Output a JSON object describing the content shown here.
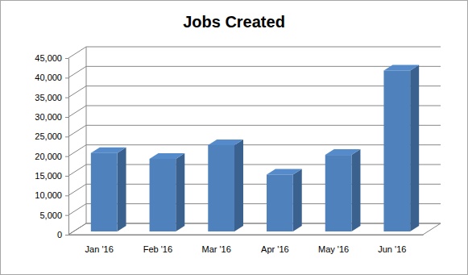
{
  "chart_data": {
    "type": "bar",
    "title": "Jobs Created",
    "categories": [
      "Jan '16",
      "Feb '16",
      "Mar '16",
      "Apr '16",
      "May '16",
      "Jun '16"
    ],
    "values": [
      20000,
      18500,
      22000,
      14500,
      19500,
      41000
    ],
    "color": "#4f81bd",
    "ylim": [
      0,
      45000
    ],
    "yticks": [
      0,
      {
        "value": 5000,
        "label": "5,000"
      },
      {
        "value": 10000,
        "label": "10,000"
      },
      {
        "value": 15000,
        "label": "15,000"
      },
      {
        "value": 20000,
        "label": "20,000"
      },
      {
        "value": 25000,
        "label": "25,000"
      },
      {
        "value": 30000,
        "label": "30,000"
      },
      {
        "value": 35000,
        "label": "35,000"
      },
      {
        "value": 40000,
        "label": "40,000"
      },
      {
        "value": 45000,
        "label": "45,000"
      }
    ],
    "grid": true
  }
}
